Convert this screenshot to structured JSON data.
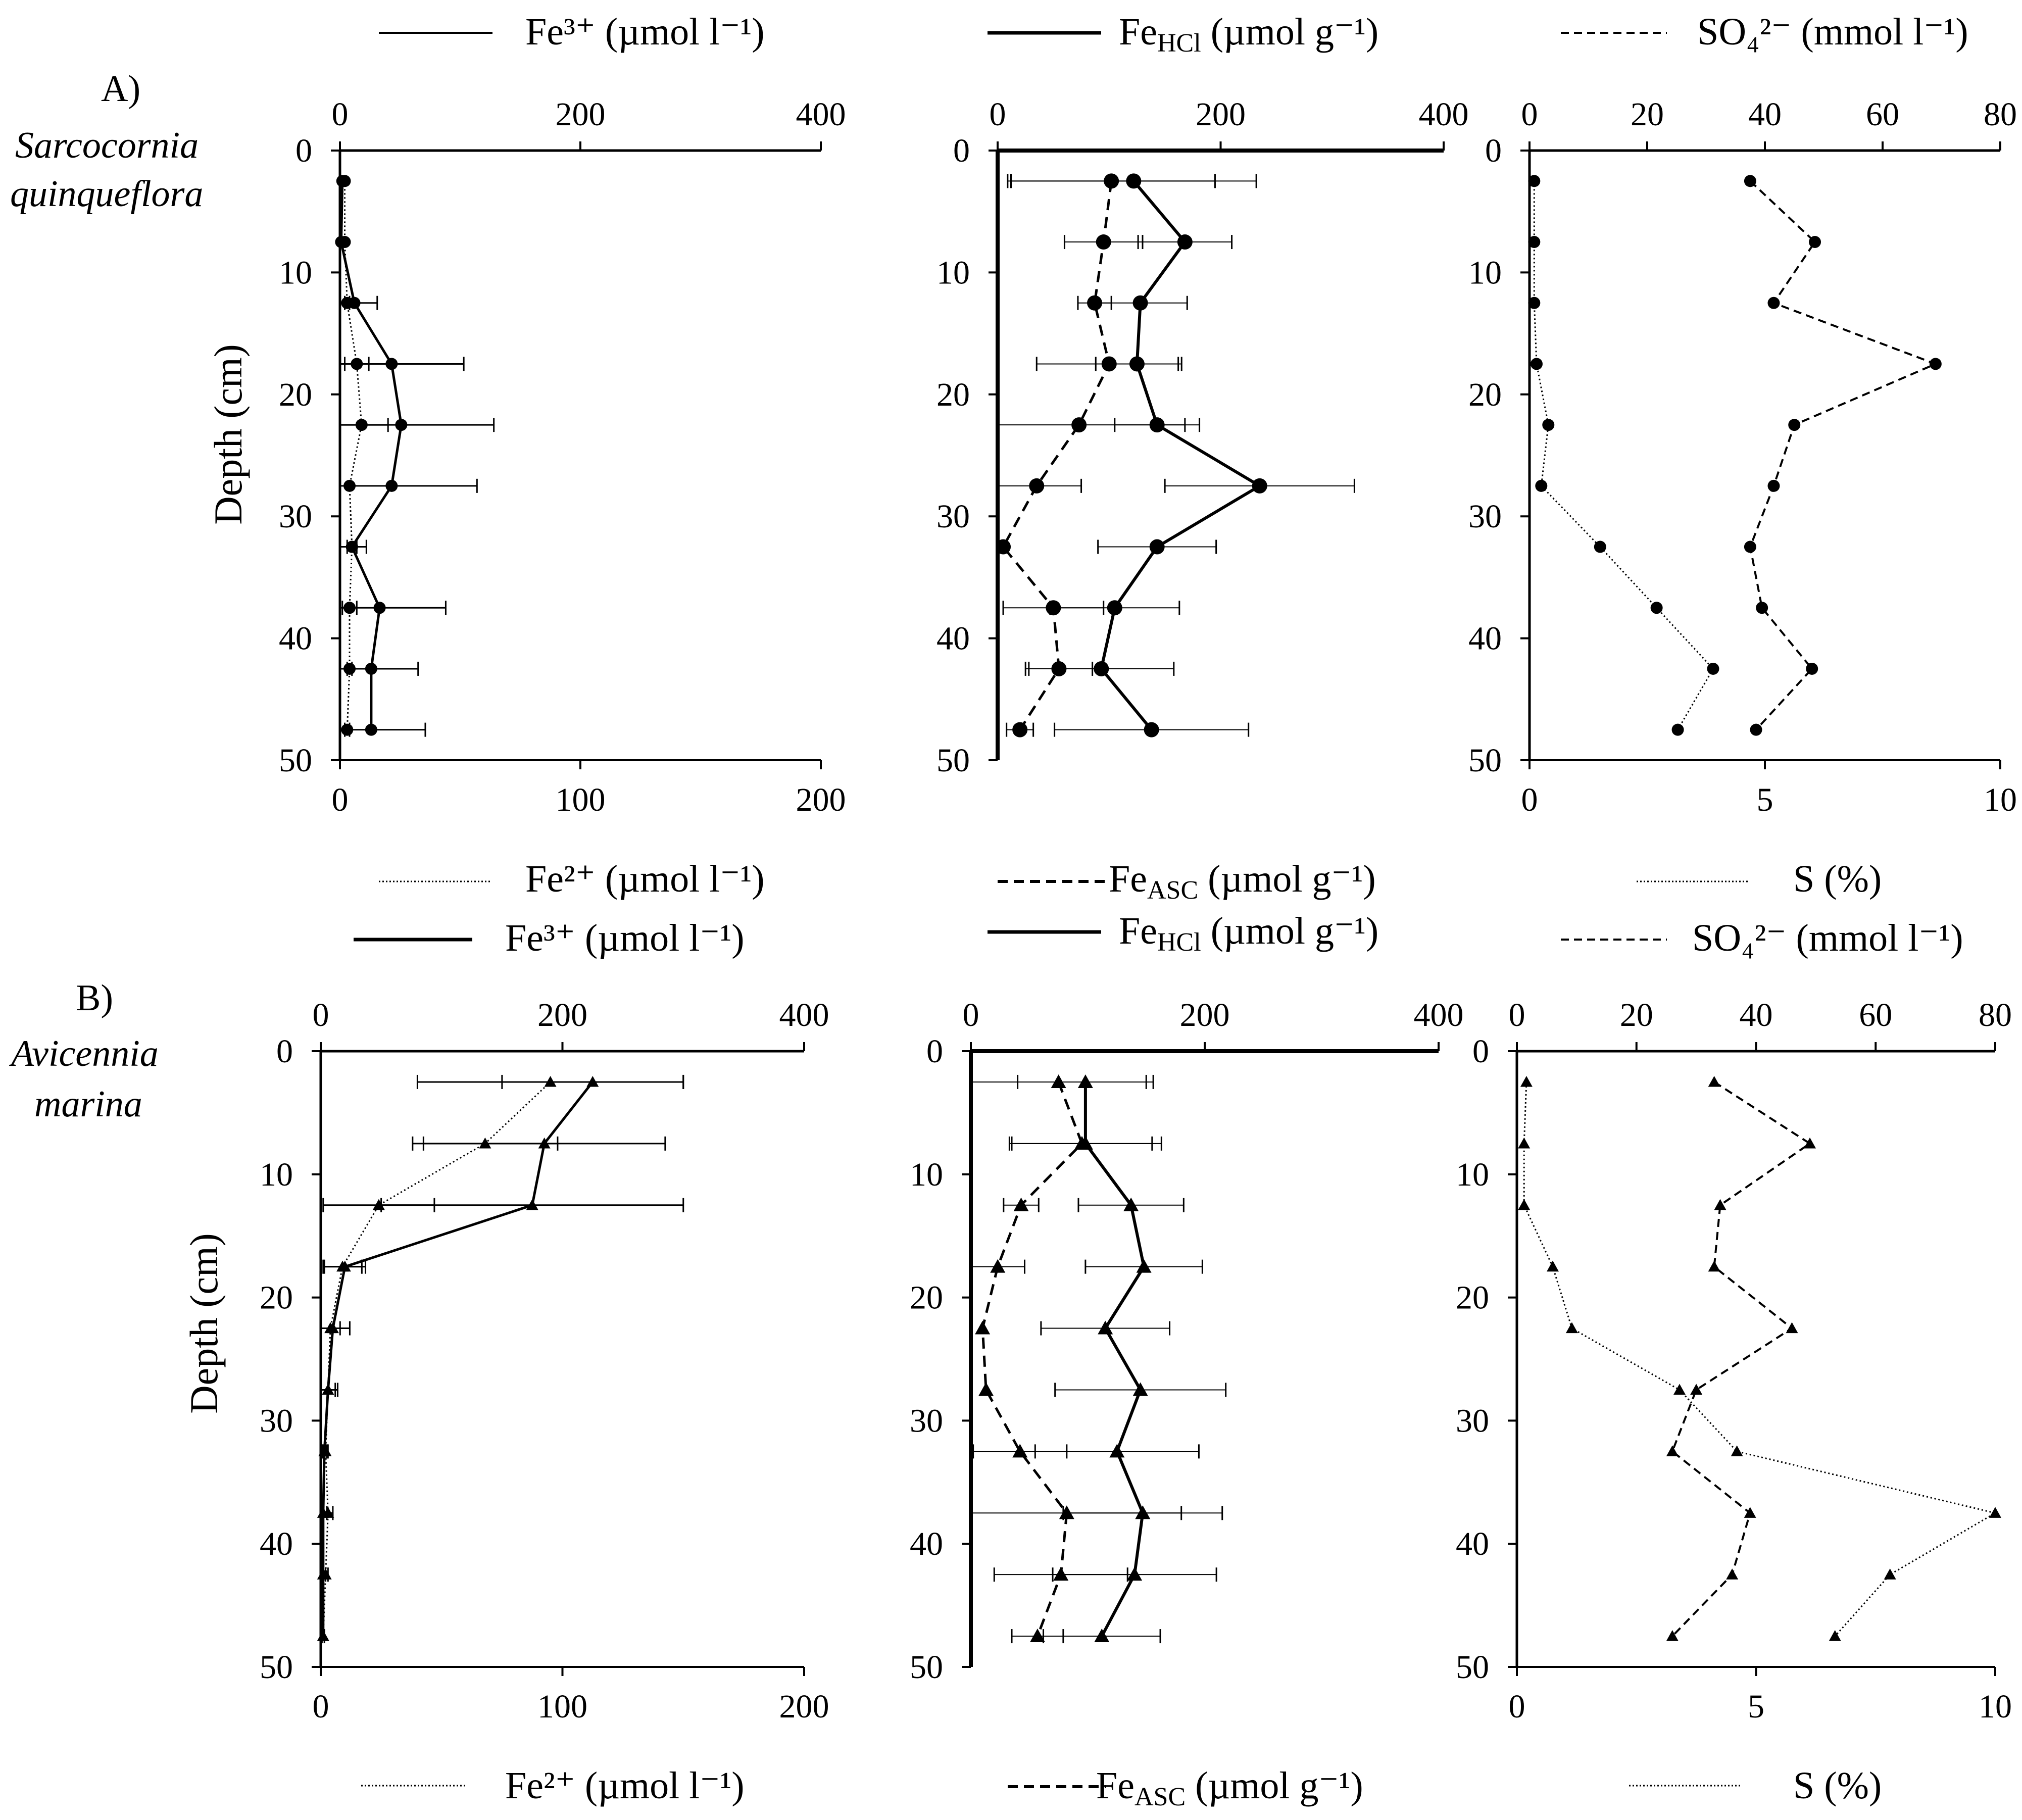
{
  "rows": [
    {
      "panel_label": "A)",
      "species_line1": "Sarcocornia",
      "species_line2": "quinqueflora",
      "marker": "circle"
    },
    {
      "panel_label": "B)",
      "species_line1": "Avicennia",
      "species_line2": "marina",
      "marker": "triangle"
    }
  ],
  "y_axis": {
    "label": "Depth (cm)",
    "ticks": [
      0,
      10,
      20,
      30,
      40,
      50
    ],
    "range": [
      0,
      50
    ]
  },
  "legends": {
    "fe3": "Fe³⁺ (µmol l⁻¹)",
    "fe2": "Fe²⁺ (µmol l⁻¹)",
    "fehcl_main": "Fe",
    "fehcl_sub": "HCl",
    "fehcl_units": " (µmol g⁻¹)",
    "feasc_main": "Fe",
    "feasc_sub": "ASC",
    "feasc_units": " (µmol g⁻¹)",
    "so4": "SO₄²⁻ (mmol l⁻¹)",
    "s": "S (%)"
  },
  "axes": {
    "col1_top_ticks": [
      0,
      200,
      400
    ],
    "col1_bottom_ticks": [
      0,
      100,
      200
    ],
    "col2_top_ticks": [
      0,
      200,
      400
    ],
    "col3_top_ticks": [
      0,
      20,
      40,
      60,
      80
    ],
    "col3_bottom_ticks": [
      0,
      5,
      10
    ]
  },
  "chart_data": [
    {
      "type": "line",
      "row": "A",
      "title": "",
      "ylabel": "Depth (cm)",
      "ylim": [
        50,
        0
      ],
      "series": [
        {
          "name": "Fe3+ (µmol l-1)",
          "axis": "top",
          "xlim": [
            0,
            400
          ],
          "x": [
            2,
            1,
            12,
            43,
            51,
            43,
            10,
            33,
            26,
            26
          ],
          "xerr": [
            0,
            0,
            19,
            60,
            77,
            71,
            4,
            55,
            39,
            45
          ],
          "y": [
            2.5,
            7.5,
            12.5,
            17.5,
            22.5,
            27.5,
            32.5,
            37.5,
            42.5,
            47.5
          ]
        },
        {
          "name": "Fe2+ (µmol l-1)",
          "axis": "bottom",
          "xlim": [
            0,
            200
          ],
          "x": [
            2,
            2,
            3,
            7,
            9,
            4,
            5,
            4,
            4,
            3
          ],
          "xerr": [
            0,
            0,
            1,
            5,
            11,
            0,
            6,
            3,
            1,
            1
          ],
          "y": [
            2.5,
            7.5,
            12.5,
            17.5,
            22.5,
            27.5,
            32.5,
            37.5,
            42.5,
            47.5
          ]
        },
        {
          "name": "FeHCl (µmol g-1)",
          "axis": "top",
          "xlim": [
            0,
            400
          ],
          "x": [
            122,
            168,
            128,
            125,
            143,
            235,
            143,
            105,
            93,
            138
          ],
          "xerr": [
            110,
            42,
            42,
            37,
            38,
            85,
            53,
            58,
            65,
            87
          ],
          "y": [
            2.5,
            7.5,
            12.5,
            17.5,
            22.5,
            27.5,
            32.5,
            37.5,
            42.5,
            47.5
          ]
        },
        {
          "name": "FeASC (µmol g-1)",
          "axis": "top",
          "xlim": [
            0,
            400
          ],
          "x": [
            102,
            95,
            87,
            100,
            73,
            35,
            5,
            50,
            55,
            20
          ],
          "xerr": [
            93,
            35,
            15,
            65,
            95,
            40,
            0,
            45,
            30,
            12
          ],
          "y": [
            2.5,
            7.5,
            12.5,
            17.5,
            22.5,
            27.5,
            32.5,
            37.5,
            42.5,
            47.5
          ]
        },
        {
          "name": "SO42- (mmol l-1)",
          "axis": "top",
          "xlim": [
            0,
            80
          ],
          "x": [
            37.5,
            48.5,
            41.5,
            69,
            45,
            41.5,
            37.5,
            39.5,
            48,
            38.5
          ],
          "y": [
            2.5,
            7.5,
            12.5,
            17.5,
            22.5,
            27.5,
            32.5,
            37.5,
            42.5,
            47.5
          ]
        },
        {
          "name": "S (%)",
          "axis": "bottom",
          "xlim": [
            0,
            10
          ],
          "x": [
            0.1,
            0.1,
            0.1,
            0.15,
            0.4,
            0.25,
            1.5,
            2.7,
            3.9,
            3.15
          ],
          "y": [
            2.5,
            7.5,
            12.5,
            17.5,
            22.5,
            27.5,
            32.5,
            37.5,
            42.5,
            47.5
          ]
        }
      ]
    },
    {
      "type": "line",
      "row": "B",
      "title": "",
      "ylabel": "Depth (cm)",
      "ylim": [
        50,
        0
      ],
      "series": [
        {
          "name": "Fe3+ (µmol l-1)",
          "axis": "top",
          "xlim": [
            0,
            400
          ],
          "x": [
            225,
            185,
            175,
            20,
            10,
            6,
            3,
            2,
            2,
            2
          ],
          "xerr": [
            75,
            100,
            125,
            17,
            14,
            8,
            2,
            3,
            2,
            1
          ],
          "y": [
            2.5,
            7.5,
            12.5,
            17.5,
            22.5,
            27.5,
            32.5,
            37.5,
            42.5,
            47.5
          ]
        },
        {
          "name": "Fe2+ (µmol l-1)",
          "axis": "bottom",
          "xlim": [
            0,
            200
          ],
          "x": [
            95,
            68,
            24,
            9,
            4,
            3,
            2,
            3,
            2,
            1
          ],
          "xerr": [
            55,
            30,
            23,
            8,
            4,
            3,
            1,
            2,
            1,
            0
          ],
          "y": [
            2.5,
            7.5,
            12.5,
            17.5,
            22.5,
            27.5,
            32.5,
            37.5,
            42.5,
            47.5
          ]
        },
        {
          "name": "FeHCl (µmol g-1)",
          "axis": "top",
          "xlim": [
            0,
            400
          ],
          "x": [
            98,
            98,
            137,
            148,
            115,
            145,
            125,
            147,
            140,
            112
          ],
          "xerr": [
            58,
            65,
            45,
            50,
            55,
            73,
            70,
            68,
            70,
            50
          ],
          "y": [
            2.5,
            7.5,
            12.5,
            17.5,
            22.5,
            27.5,
            32.5,
            37.5,
            42.5,
            47.5
          ]
        },
        {
          "name": "FeASC (µmol g-1)",
          "axis": "top",
          "xlim": [
            0,
            400
          ],
          "x": [
            75,
            95,
            43,
            23,
            10,
            13,
            42,
            82,
            77,
            57
          ],
          "xerr": [
            75,
            60,
            15,
            23,
            0,
            0,
            40,
            98,
            57,
            22
          ],
          "y": [
            2.5,
            7.5,
            12.5,
            17.5,
            22.5,
            27.5,
            32.5,
            37.5,
            42.5,
            47.5
          ]
        },
        {
          "name": "SO42- (mmol l-1)",
          "axis": "top",
          "xlim": [
            0,
            80
          ],
          "x": [
            33,
            49,
            34,
            33,
            46,
            30,
            26,
            39,
            36,
            26
          ],
          "y": [
            2.5,
            7.5,
            12.5,
            17.5,
            22.5,
            27.5,
            32.5,
            37.5,
            42.5,
            47.5
          ]
        },
        {
          "name": "S (%)",
          "axis": "bottom",
          "xlim": [
            0,
            10
          ],
          "x": [
            0.2,
            0.15,
            0.15,
            0.75,
            1.15,
            3.4,
            4.6,
            10,
            7.8,
            6.65
          ],
          "y": [
            2.5,
            7.5,
            12.5,
            17.5,
            22.5,
            27.5,
            32.5,
            37.5,
            42.5,
            47.5
          ]
        }
      ]
    }
  ]
}
